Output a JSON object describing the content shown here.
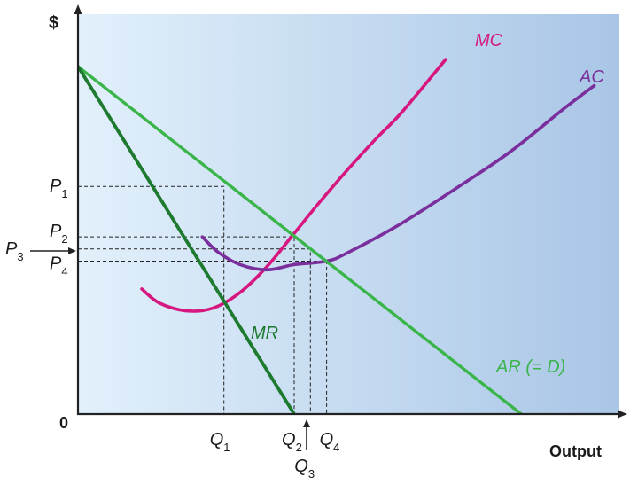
{
  "chart_data": {
    "type": "line",
    "title": "",
    "ylabel": "$",
    "xlabel": "Output",
    "origin_label": "0",
    "xlim": [
      0,
      10
    ],
    "ylim": [
      0,
      10
    ],
    "colors": {
      "background_left": "#e2f0fb",
      "background_right": "#a9c6e6",
      "MC": "#d6177f",
      "AC": "#7a2f9d",
      "AR": "#3ab54a",
      "MR": "#1d7a2f",
      "axis": "#222222"
    },
    "series": [
      {
        "name": "MC",
        "label": "MC",
        "color_key": "MC",
        "points": [
          [
            1.18,
            3.6
          ],
          [
            1.5,
            3.2
          ],
          [
            2.0,
            2.97
          ],
          [
            2.5,
            3.05
          ],
          [
            3.0,
            3.5
          ],
          [
            3.5,
            4.25
          ],
          [
            4.0,
            5.2
          ],
          [
            4.5,
            6.15
          ],
          [
            5.0,
            7.05
          ],
          [
            5.5,
            7.9
          ],
          [
            6.0,
            8.7
          ],
          [
            6.8,
            10.2
          ]
        ]
      },
      {
        "name": "AC",
        "label": "AC",
        "color_key": "AC",
        "points": [
          [
            2.3,
            5.1
          ],
          [
            2.6,
            4.65
          ],
          [
            3.0,
            4.3
          ],
          [
            3.5,
            4.15
          ],
          [
            4.0,
            4.3
          ],
          [
            4.6,
            4.4
          ],
          [
            5.0,
            4.65
          ],
          [
            6.0,
            5.5
          ],
          [
            7.0,
            6.5
          ],
          [
            8.0,
            7.55
          ],
          [
            9.0,
            8.8
          ],
          [
            9.55,
            9.45
          ]
        ]
      },
      {
        "name": "AR",
        "label": "AR (= D)",
        "color_key": "AR",
        "points": [
          [
            0,
            10
          ],
          [
            8.2,
            0
          ]
        ]
      },
      {
        "name": "MR",
        "label": "MR",
        "color_key": "MR",
        "points": [
          [
            0,
            10
          ],
          [
            4.0,
            0
          ]
        ]
      }
    ],
    "price_levels": [
      {
        "name": "P1",
        "main": "P",
        "sub": "1",
        "value": 6.55
      },
      {
        "name": "P2",
        "main": "P",
        "sub": "2",
        "value": 5.1
      },
      {
        "name": "P3",
        "main": "P",
        "sub": "3",
        "value": 4.75
      },
      {
        "name": "P4",
        "main": "P",
        "sub": "4",
        "value": 4.4
      }
    ],
    "quantity_levels": [
      {
        "name": "Q1",
        "main": "Q",
        "sub": "1",
        "value": 2.7
      },
      {
        "name": "Q2",
        "main": "Q",
        "sub": "2",
        "value": 4.0
      },
      {
        "name": "Q3",
        "main": "Q",
        "sub": "3",
        "value": 4.3
      },
      {
        "name": "Q4",
        "main": "Q",
        "sub": "4",
        "value": 4.6
      }
    ],
    "guides": [
      {
        "name": "guide-p1-q1",
        "x": 2.7,
        "y": 6.55
      },
      {
        "name": "guide-p2-q2",
        "x": 4.0,
        "y": 5.1
      },
      {
        "name": "guide-p3-q3",
        "x": 4.3,
        "y": 4.75
      },
      {
        "name": "guide-p4-q4",
        "x": 4.6,
        "y": 4.4
      }
    ]
  }
}
